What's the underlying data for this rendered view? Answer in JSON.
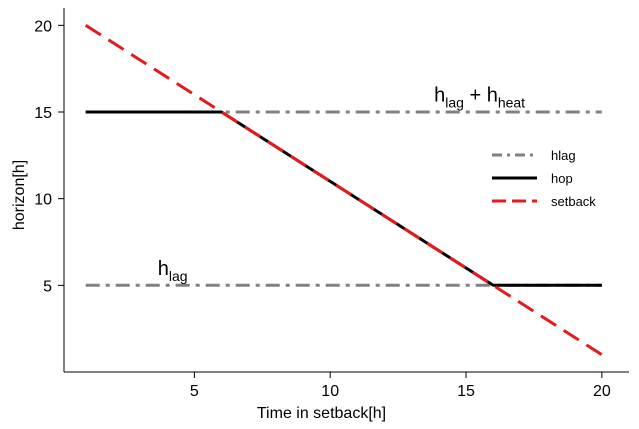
{
  "chart_data": {
    "type": "line",
    "xlabel": "Time in setback[h]",
    "ylabel": "horizon[h]",
    "xlim": [
      0.2,
      21
    ],
    "ylim": [
      0,
      21
    ],
    "x_ticks": [
      5,
      10,
      15,
      20
    ],
    "y_ticks": [
      5,
      10,
      15,
      20
    ],
    "legend_position": "right",
    "series": [
      {
        "name": "hlag",
        "style": "dash-dot",
        "color": "#808080",
        "segments": [
          {
            "x": [
              1,
              20
            ],
            "y": [
              5,
              5
            ]
          },
          {
            "x": [
              1,
              20
            ],
            "y": [
              15,
              15
            ]
          }
        ]
      },
      {
        "name": "hop",
        "style": "solid",
        "color": "#000000",
        "x": [
          1,
          6,
          16,
          20
        ],
        "y": [
          15,
          15,
          5,
          5
        ]
      },
      {
        "name": "setback",
        "style": "dashed",
        "color": "#e41a1c",
        "x": [
          1,
          20
        ],
        "y": [
          20,
          1
        ]
      }
    ],
    "annotations": [
      {
        "main": "h",
        "sub": "lag",
        "op": "",
        "main2": "",
        "sub2": "",
        "x": 4.2,
        "y": 5.6
      },
      {
        "main": "h",
        "sub": "lag",
        "op": " + ",
        "main2": "h",
        "sub2": "heat",
        "x": 15.5,
        "y": 15.6
      }
    ]
  }
}
